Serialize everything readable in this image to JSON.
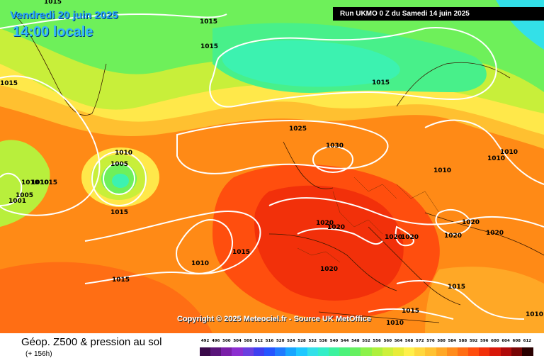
{
  "header": {
    "date": "Vendredi 20 juin 2025",
    "time": "14:00 locale",
    "run": "Run UKMO 0 Z du Samedi 14 juin 2025"
  },
  "copyright": "Copyright © 2025 Meteociel.fr - Source UK MetOffice",
  "footer": {
    "title": "Géop. Z500 & pression au sol",
    "lead": "(+ 156h)"
  },
  "scale": {
    "values": [
      "492",
      "496",
      "500",
      "504",
      "508",
      "512",
      "516",
      "520",
      "524",
      "528",
      "532",
      "536",
      "540",
      "544",
      "548",
      "552",
      "556",
      "560",
      "564",
      "568",
      "572",
      "576",
      "580",
      "584",
      "588",
      "592",
      "596",
      "600",
      "604",
      "608",
      "612"
    ],
    "colors": [
      "#3a0a4a",
      "#5a157a",
      "#7a1fa8",
      "#8c2fd0",
      "#6a3fe0",
      "#3f3ff0",
      "#2555ff",
      "#1f7bff",
      "#18a6ff",
      "#1fc8ff",
      "#33e0e8",
      "#33eec8",
      "#3cf29e",
      "#4cf27a",
      "#66f060",
      "#8cf24a",
      "#aef03c",
      "#cdf03a",
      "#e8ec38",
      "#fff04a",
      "#ffd83e",
      "#ffc232",
      "#ffa826",
      "#ff8c1c",
      "#ff6e14",
      "#ff4e0e",
      "#f2300a",
      "#d8180a",
      "#b00a0a",
      "#780606",
      "#2a0000"
    ]
  },
  "pressure_labels": [
    "1015",
    "1015",
    "1015",
    "1015",
    "1010",
    "1005",
    "1015",
    "1010",
    "1010",
    "1015",
    "1005",
    "1001",
    "1010",
    "1015",
    "1015",
    "1025",
    "1030",
    "1015",
    "1020",
    "1020",
    "1020",
    "1020",
    "1020",
    "1020",
    "1020",
    "1010",
    "1010",
    "1020",
    "1015",
    "1015",
    "1010",
    "1010",
    "1010"
  ],
  "map_colors": {
    "base": "#ff8a16",
    "land": "#8f2a00",
    "isobar": "#ffffff"
  }
}
